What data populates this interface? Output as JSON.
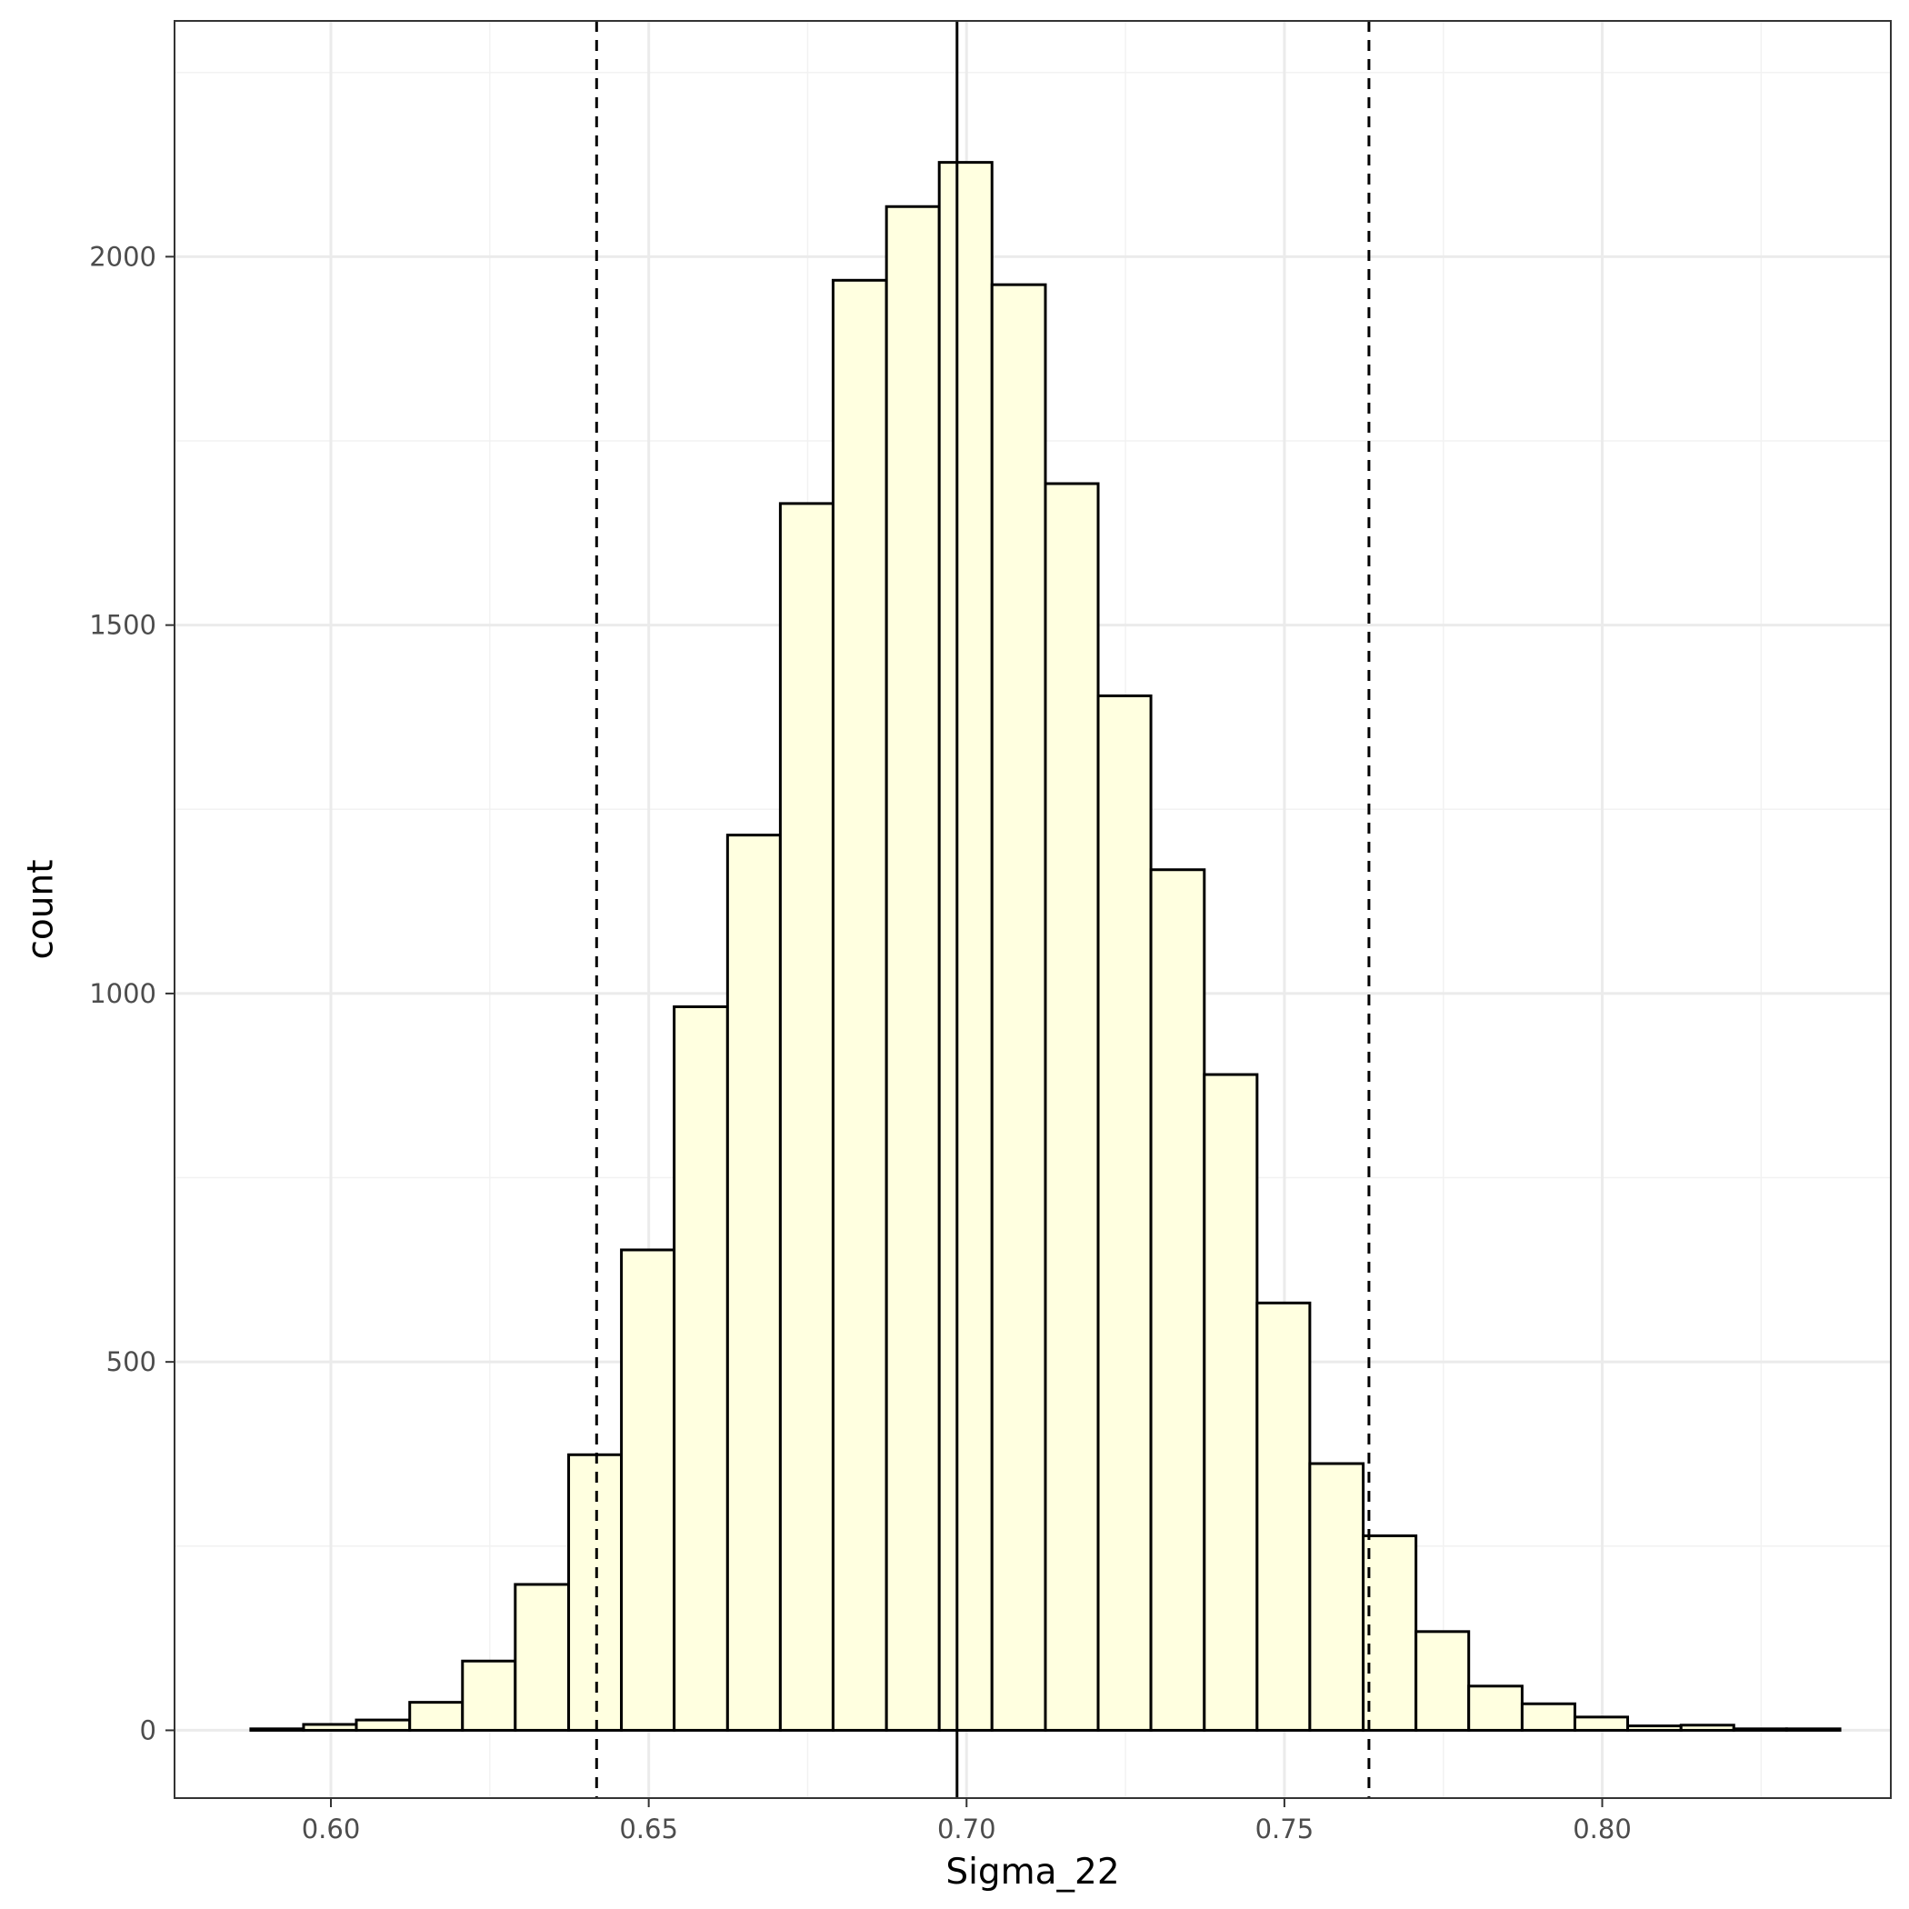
{
  "chart_data": {
    "type": "bar",
    "subtype": "histogram",
    "xlabel": "Sigma_22",
    "ylabel": "count",
    "xlim": [
      0.5754,
      0.8454
    ],
    "ylim": [
      -92,
      2320
    ],
    "x_ticks": [
      0.6,
      0.65,
      0.7,
      0.75,
      0.8
    ],
    "x_tick_labels": [
      "0.60",
      "0.65",
      "0.70",
      "0.75",
      "0.80"
    ],
    "y_ticks": [
      0,
      500,
      1000,
      1500,
      2000
    ],
    "y_tick_labels": [
      "0",
      "500",
      "1000",
      "1500",
      "2000"
    ],
    "grid": true,
    "bar_fill": "#FFFFE0",
    "bar_outline": "#000000",
    "bins": [
      {
        "x0": 0.5874,
        "x1": 0.5957,
        "count": 2
      },
      {
        "x0": 0.5957,
        "x1": 0.604,
        "count": 8
      },
      {
        "x0": 0.604,
        "x1": 0.6124,
        "count": 14
      },
      {
        "x0": 0.6124,
        "x1": 0.6207,
        "count": 38
      },
      {
        "x0": 0.6207,
        "x1": 0.629,
        "count": 94
      },
      {
        "x0": 0.629,
        "x1": 0.6374,
        "count": 198
      },
      {
        "x0": 0.6374,
        "x1": 0.6457,
        "count": 374
      },
      {
        "x0": 0.6457,
        "x1": 0.654,
        "count": 652
      },
      {
        "x0": 0.654,
        "x1": 0.6624,
        "count": 982
      },
      {
        "x0": 0.6624,
        "x1": 0.6707,
        "count": 1215
      },
      {
        "x0": 0.6707,
        "x1": 0.679,
        "count": 1665
      },
      {
        "x0": 0.679,
        "x1": 0.6874,
        "count": 1968
      },
      {
        "x0": 0.6874,
        "x1": 0.6957,
        "count": 2068
      },
      {
        "x0": 0.6957,
        "x1": 0.704,
        "count": 2128
      },
      {
        "x0": 0.704,
        "x1": 0.7124,
        "count": 1962
      },
      {
        "x0": 0.7124,
        "x1": 0.7207,
        "count": 1692
      },
      {
        "x0": 0.7207,
        "x1": 0.729,
        "count": 1404
      },
      {
        "x0": 0.729,
        "x1": 0.7374,
        "count": 1168
      },
      {
        "x0": 0.7374,
        "x1": 0.7457,
        "count": 890
      },
      {
        "x0": 0.7457,
        "x1": 0.754,
        "count": 580
      },
      {
        "x0": 0.754,
        "x1": 0.7624,
        "count": 362
      },
      {
        "x0": 0.7624,
        "x1": 0.7707,
        "count": 264
      },
      {
        "x0": 0.7707,
        "x1": 0.779,
        "count": 134
      },
      {
        "x0": 0.779,
        "x1": 0.7874,
        "count": 60
      },
      {
        "x0": 0.7874,
        "x1": 0.7957,
        "count": 36
      },
      {
        "x0": 0.7957,
        "x1": 0.804,
        "count": 18
      },
      {
        "x0": 0.804,
        "x1": 0.8124,
        "count": 6
      },
      {
        "x0": 0.8124,
        "x1": 0.8207,
        "count": 7
      },
      {
        "x0": 0.8207,
        "x1": 0.829,
        "count": 2
      },
      {
        "x0": 0.829,
        "x1": 0.8374,
        "count": 2
      }
    ],
    "reference_lines": [
      {
        "x": 0.6418,
        "style": "dashed"
      },
      {
        "x": 0.6985,
        "style": "solid"
      },
      {
        "x": 0.7633,
        "style": "dashed"
      }
    ]
  }
}
